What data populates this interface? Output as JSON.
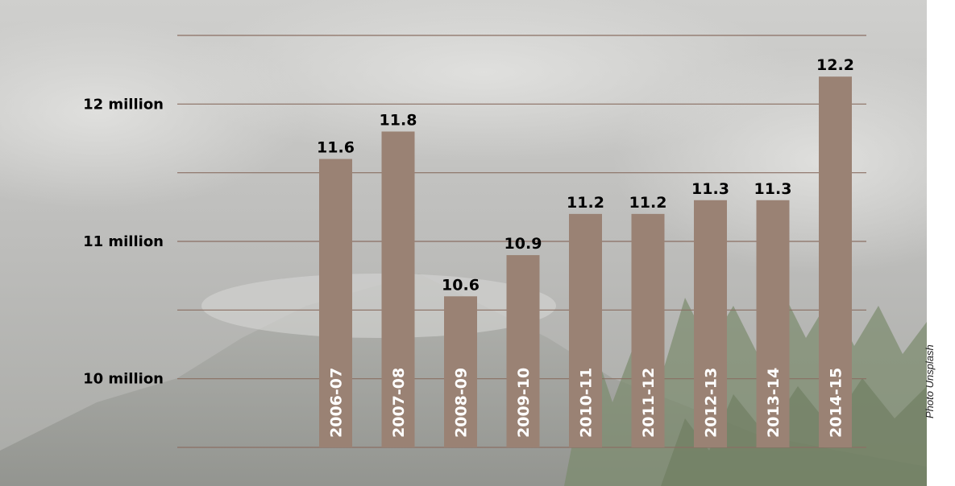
{
  "chart_data": {
    "type": "bar",
    "categories": [
      "2006-07",
      "2007-08",
      "2008-09",
      "2009-10",
      "2010-11",
      "2011-12",
      "2012-13",
      "2013-14",
      "2014-15"
    ],
    "values": [
      11.6,
      11.8,
      10.6,
      10.9,
      11.2,
      11.2,
      11.3,
      11.3,
      12.2
    ],
    "value_labels": [
      "11.6",
      "11.8",
      "10.6",
      "10.9",
      "11.2",
      "11.2",
      "11.3",
      "11.3",
      "12.2"
    ],
    "y_ticks": [
      {
        "value": 10,
        "label": "10 million"
      },
      {
        "value": 11,
        "label": "11 million"
      },
      {
        "value": 12,
        "label": "12 million"
      }
    ],
    "gridlines": [
      9.5,
      10,
      10.5,
      11,
      11.5,
      12,
      12.5
    ],
    "ylim": [
      9.5,
      12.5
    ],
    "title": "",
    "xlabel": "",
    "ylabel": "",
    "grid": true,
    "legend": "none",
    "colors": {
      "bar": "#9a8274",
      "grid": "#8a6f63"
    }
  },
  "credit": "Photo Unsplash"
}
